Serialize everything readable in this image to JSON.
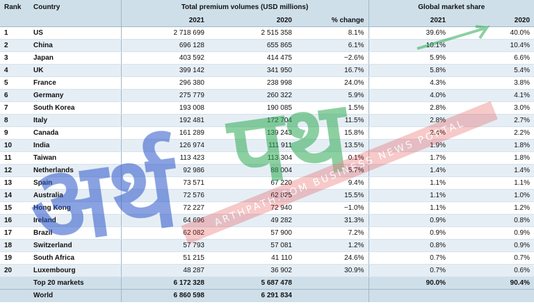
{
  "header": {
    "rank": "Rank",
    "country": "Country",
    "volumes": "Total premium volumes (USD millions)",
    "share": "Global market share",
    "y2021": "2021",
    "y2020": "2020",
    "change": "% change",
    "s2021": "2021",
    "s2020": "2020"
  },
  "rows": [
    {
      "rank": "1",
      "country": "US",
      "v2021": "2 718 699",
      "v2020": "2 515 358",
      "chg": "8.1%",
      "s2021": "39.6%",
      "s2020": "40.0%"
    },
    {
      "rank": "2",
      "country": "China",
      "v2021": "696 128",
      "v2020": "655 865",
      "chg": "6.1%",
      "s2021": "10.1%",
      "s2020": "10.4%"
    },
    {
      "rank": "3",
      "country": "Japan",
      "v2021": "403 592",
      "v2020": "414 475",
      "chg": "−2.6%",
      "s2021": "5.9%",
      "s2020": "6.6%"
    },
    {
      "rank": "4",
      "country": "UK",
      "v2021": "399 142",
      "v2020": "341 950",
      "chg": "16.7%",
      "s2021": "5.8%",
      "s2020": "5.4%"
    },
    {
      "rank": "5",
      "country": "France",
      "v2021": "296 380",
      "v2020": "238 998",
      "chg": "24.0%",
      "s2021": "4.3%",
      "s2020": "3.8%"
    },
    {
      "rank": "6",
      "country": "Germany",
      "v2021": "275 779",
      "v2020": "260 322",
      "chg": "5.9%",
      "s2021": "4.0%",
      "s2020": "4.1%"
    },
    {
      "rank": "7",
      "country": "South Korea",
      "v2021": "193 008",
      "v2020": "190 085",
      "chg": "1.5%",
      "s2021": "2.8%",
      "s2020": "3.0%"
    },
    {
      "rank": "8",
      "country": "Italy",
      "v2021": "192 481",
      "v2020": "172 704",
      "chg": "11.5%",
      "s2021": "2.8%",
      "s2020": "2.7%"
    },
    {
      "rank": "9",
      "country": "Canada",
      "v2021": "161 289",
      "v2020": "139 243",
      "chg": "15.8%",
      "s2021": "2.4%",
      "s2020": "2.2%"
    },
    {
      "rank": "10",
      "country": "India",
      "v2021": "126 974",
      "v2020": "111 911",
      "chg": "13.5%",
      "s2021": "1.9%",
      "s2020": "1.8%"
    },
    {
      "rank": "11",
      "country": "Taiwan",
      "v2021": "113 423",
      "v2020": "113 304",
      "chg": "0.1%",
      "s2021": "1.7%",
      "s2020": "1.8%"
    },
    {
      "rank": "12",
      "country": "Netherlands",
      "v2021": "92 986",
      "v2020": "88 004",
      "chg": "5.7%",
      "s2021": "1.4%",
      "s2020": "1.4%"
    },
    {
      "rank": "13",
      "country": "Spain",
      "v2021": "73 571",
      "v2020": "67 220",
      "chg": "9.4%",
      "s2021": "1.1%",
      "s2020": "1.1%"
    },
    {
      "rank": "14",
      "country": "Australia",
      "v2021": "72 576",
      "v2020": "62 825",
      "chg": "15.5%",
      "s2021": "1.1%",
      "s2020": "1.0%"
    },
    {
      "rank": "15",
      "country": "Hong Kong",
      "v2021": "72 227",
      "v2020": "72 940",
      "chg": "−1.0%",
      "s2021": "1.1%",
      "s2020": "1.2%"
    },
    {
      "rank": "16",
      "country": "Ireland",
      "v2021": "64 696",
      "v2020": "49 282",
      "chg": "31.3%",
      "s2021": "0.9%",
      "s2020": "0.8%"
    },
    {
      "rank": "17",
      "country": "Brazil",
      "v2021": "62 082",
      "v2020": "57 900",
      "chg": "7.2%",
      "s2021": "0.9%",
      "s2020": "0.9%"
    },
    {
      "rank": "18",
      "country": "Switzerland",
      "v2021": "57 793",
      "v2020": "57 081",
      "chg": "1.2%",
      "s2021": "0.8%",
      "s2020": "0.9%"
    },
    {
      "rank": "19",
      "country": "South Africa",
      "v2021": "51 215",
      "v2020": "41 110",
      "chg": "24.6%",
      "s2021": "0.7%",
      "s2020": "0.7%"
    },
    {
      "rank": "20",
      "country": "Luxembourg",
      "v2021": "48 287",
      "v2020": "36 902",
      "chg": "30.9%",
      "s2021": "0.7%",
      "s2020": "0.6%"
    }
  ],
  "footer": [
    {
      "label": "Top 20 markets",
      "v2021": "6 172 328",
      "v2020": "5 687 478",
      "chg": "",
      "s2021": "90.0%",
      "s2020": "90.4%"
    },
    {
      "label": "World",
      "v2021": "6 860 598",
      "v2020": "6 291 834",
      "chg": "",
      "s2021": "",
      "s2020": ""
    }
  ],
  "watermark": {
    "text": "ARTHPATH.COM BUSINESS NEWS PORTAL",
    "logo_text": "अर्थपथ",
    "color_blue": "#2a57c8",
    "color_green": "#2eaa55",
    "color_red": "#e43b3b"
  }
}
